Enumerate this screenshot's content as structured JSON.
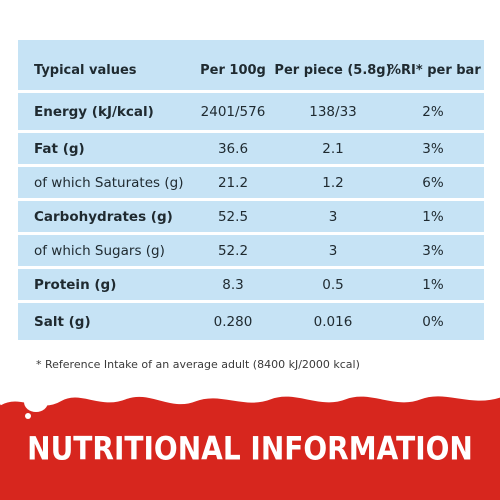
{
  "table": {
    "headers": [
      "Typical values",
      "Per 100g",
      "Per piece (5.8g)",
      "%RI* per bar"
    ],
    "rows": [
      {
        "label": "Energy (kJ/kcal)",
        "per100g": "2401/576",
        "perPiece": "138/33",
        "ri": "2%"
      },
      {
        "label": "Fat (g)",
        "per100g": "36.6",
        "perPiece": "2.1",
        "ri": "3%"
      },
      {
        "label": "of which Saturates (g)",
        "per100g": "21.2",
        "perPiece": "1.2",
        "ri": "6%"
      },
      {
        "label": "Carbohydrates (g)",
        "per100g": "52.5",
        "perPiece": "3",
        "ri": "1%"
      },
      {
        "label": "of which Sugars (g)",
        "per100g": "52.2",
        "perPiece": "3",
        "ri": "3%"
      },
      {
        "label": "Protein (g)",
        "per100g": "8.3",
        "perPiece": "0.5",
        "ri": "1%"
      },
      {
        "label": "Salt (g)",
        "per100g": "0.280",
        "perPiece": "0.016",
        "ri": "0%"
      }
    ]
  },
  "footnote": "* Reference Intake of an average adult (8400 kJ/2000 kcal)",
  "banner": {
    "title": "NUTRITIONAL INFORMATION",
    "color": "#d7261e"
  }
}
